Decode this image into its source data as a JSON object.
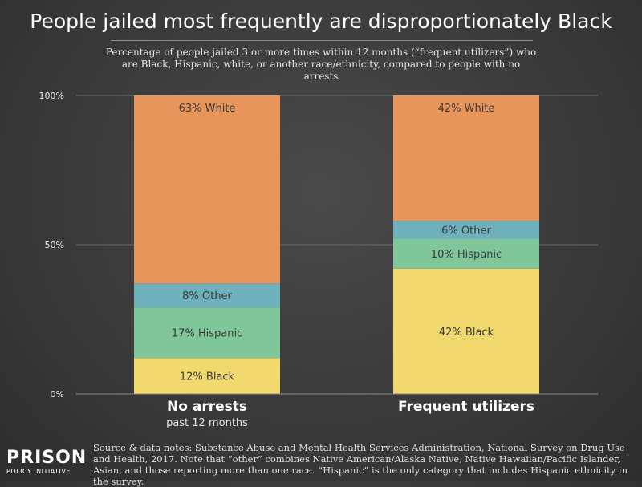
{
  "title": "People jailed most frequently are disproportionately Black",
  "subtitle": "Percentage of people jailed 3 or more times within 12 months (“frequent utilizers”) who are Black, Hispanic, white, or another race/ethnicity, compared to people with no arrests",
  "source": "Source & data notes: Substance Abuse and Mental Health Services Administration, National Survey on Drug Use and Health, 2017. Note that “other” combines Native American/Alaska Native, Native Hawaiian/Pacific Islander, Asian, and those reporting more than one race. “Hispanic” is the only category that includes Hispanic ethnicity in the survey.",
  "logo": {
    "top": "PRISON",
    "bottom": "POLICY INITIATIVE"
  },
  "chart_data": {
    "type": "bar",
    "stacked": true,
    "categories": [
      "No arrests",
      "Frequent utilizers"
    ],
    "category_sublabels": [
      "past 12 months",
      ""
    ],
    "series": [
      {
        "key": "Black",
        "color": "#f2d96e",
        "values": [
          12,
          42
        ],
        "labels": [
          "12% Black",
          "42% Black"
        ]
      },
      {
        "key": "Hispanic",
        "color": "#7fc79a",
        "values": [
          17,
          10
        ],
        "labels": [
          "17% Hispanic",
          "10% Hispanic"
        ]
      },
      {
        "key": "Other",
        "color": "#6fb0bd",
        "values": [
          8,
          6
        ],
        "labels": [
          "8% Other",
          "6% Other"
        ]
      },
      {
        "key": "White",
        "color": "#e8955c",
        "values": [
          63,
          42
        ],
        "labels": [
          "63% White",
          "42% White"
        ]
      }
    ],
    "ylim": [
      0,
      100
    ],
    "yticks": [
      0,
      50,
      100
    ],
    "ytick_labels": [
      "0%",
      "50%",
      "100%"
    ],
    "grid": true
  }
}
